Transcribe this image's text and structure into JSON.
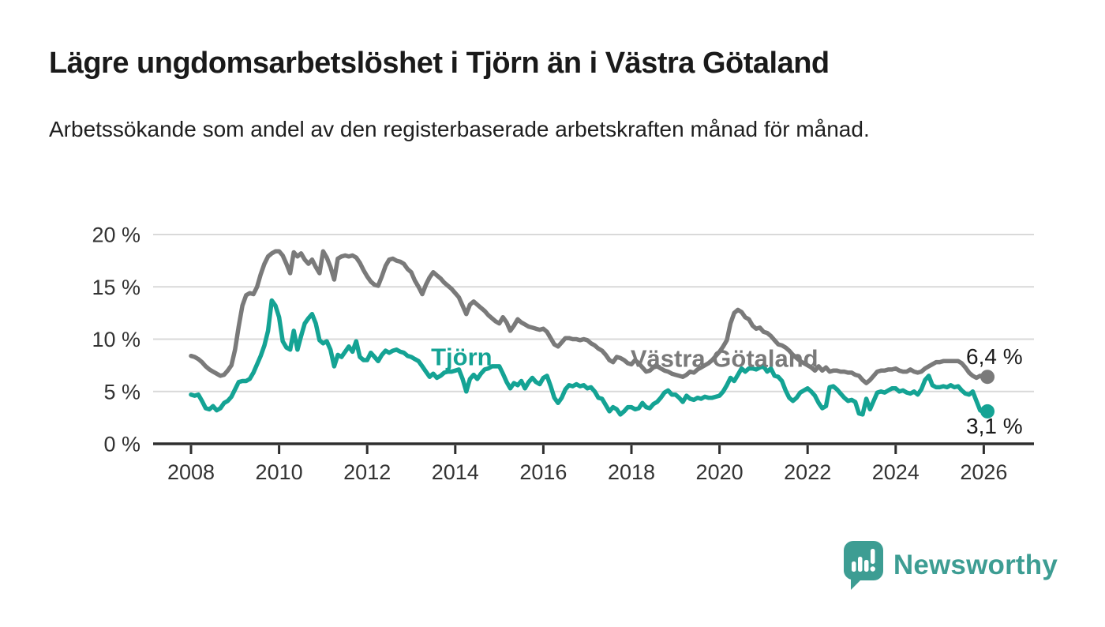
{
  "header": {
    "title": "Lägre ungdomsarbetslöshet i Tjörn än i Västra Götaland",
    "subtitle": "Arbetssökande som andel av den registerbaserade arbetskraften månad för månad."
  },
  "footer": {
    "logo_text": "Newsworthy",
    "logo_icon": "bar-chart-speech-bubble",
    "logo_color": "#3d9d93"
  },
  "colors": {
    "background": "#ffffff",
    "title_text": "#1a1a1a",
    "axis_text": "#333333",
    "gridline": "#d9d9d9",
    "axis_line": "#2e2e2e",
    "tjorn": "#14a394",
    "vastra_gotaland": "#7a7a7a",
    "end_label_text": "#1a1a1a"
  },
  "chart_data": {
    "type": "line",
    "title": "Lägre ungdomsarbetslöshet i Tjörn än i Västra Götaland",
    "subtitle": "Arbetssökande som andel av den registerbaserade arbetskraften månad för månad.",
    "xlabel": "",
    "ylabel": "",
    "grid": "horizontal",
    "legend_position": "inline-labels",
    "start_year": 2008,
    "points_per_year": 12,
    "xlim": [
      2007,
      2027.1
    ],
    "ylim": [
      0,
      20
    ],
    "x_ticks": [
      {
        "value": 2008,
        "label": "2008"
      },
      {
        "value": 2010,
        "label": "2010"
      },
      {
        "value": 2012,
        "label": "2012"
      },
      {
        "value": 2014,
        "label": "2014"
      },
      {
        "value": 2016,
        "label": "2016"
      },
      {
        "value": 2018,
        "label": "2018"
      },
      {
        "value": 2020,
        "label": "2020"
      },
      {
        "value": 2022,
        "label": "2022"
      },
      {
        "value": 2024,
        "label": "2024"
      },
      {
        "value": 2026,
        "label": "2026"
      }
    ],
    "y_ticks": [
      {
        "value": 0,
        "label": "0 %"
      },
      {
        "value": 5,
        "label": "5 %"
      },
      {
        "value": 10,
        "label": "10 %"
      },
      {
        "value": 15,
        "label": "15 %"
      },
      {
        "value": 20,
        "label": "20 %"
      }
    ],
    "series": [
      {
        "name": "Västra Götaland",
        "color": "#7a7a7a",
        "end_label": "6,4 %",
        "end_value": 6.4,
        "end_label_position": "above",
        "values": [
          8.4,
          8.3,
          8.1,
          7.8,
          7.4,
          7.1,
          6.9,
          6.7,
          6.5,
          6.6,
          7.0,
          7.5,
          9.0,
          11.2,
          13.2,
          14.2,
          14.4,
          14.3,
          15.0,
          16.2,
          17.2,
          17.9,
          18.2,
          18.4,
          18.4,
          18.0,
          17.2,
          16.3,
          18.3,
          17.9,
          18.2,
          17.6,
          17.2,
          17.6,
          16.9,
          16.3,
          18.4,
          17.8,
          16.9,
          15.7,
          17.7,
          17.9,
          18.0,
          17.9,
          18.0,
          17.8,
          17.3,
          16.6,
          16.0,
          15.5,
          15.2,
          15.1,
          16.0,
          17.0,
          17.6,
          17.7,
          17.5,
          17.4,
          17.2,
          16.7,
          16.4,
          15.6,
          15.0,
          14.3,
          15.2,
          15.9,
          16.4,
          16.1,
          15.8,
          15.4,
          15.1,
          14.8,
          14.4,
          14.0,
          13.2,
          12.4,
          13.3,
          13.6,
          13.3,
          13.0,
          12.7,
          12.3,
          12.0,
          11.7,
          11.5,
          12.1,
          11.6,
          10.8,
          11.3,
          11.9,
          11.6,
          11.4,
          11.2,
          11.1,
          11.0,
          10.9,
          11.0,
          10.7,
          10.1,
          9.5,
          9.3,
          9.7,
          10.1,
          10.1,
          10.0,
          10.0,
          9.9,
          10.0,
          9.9,
          9.6,
          9.4,
          9.1,
          8.9,
          8.5,
          8.0,
          7.8,
          8.3,
          8.2,
          8.0,
          7.7,
          7.6,
          8.0,
          7.7,
          7.3,
          6.9,
          7.0,
          7.3,
          7.4,
          7.2,
          7.0,
          6.9,
          6.7,
          6.6,
          6.5,
          6.4,
          6.6,
          6.9,
          6.8,
          7.1,
          7.3,
          7.5,
          7.7,
          8.0,
          8.4,
          8.8,
          9.3,
          9.9,
          11.5,
          12.5,
          12.8,
          12.6,
          12.1,
          11.9,
          11.3,
          11.0,
          11.1,
          10.7,
          10.6,
          10.3,
          9.9,
          9.5,
          9.4,
          9.2,
          8.9,
          8.5,
          8.2,
          7.9,
          7.7,
          7.5,
          7.3,
          7.0,
          7.4,
          7.0,
          7.3,
          6.9,
          7.0,
          7.0,
          6.9,
          6.9,
          6.8,
          6.8,
          6.6,
          6.5,
          6.1,
          5.8,
          6.1,
          6.5,
          6.9,
          7.0,
          7.0,
          7.1,
          7.1,
          7.2,
          7.0,
          6.9,
          6.9,
          7.1,
          6.9,
          6.8,
          6.9,
          7.2,
          7.4,
          7.6,
          7.8,
          7.8,
          7.9,
          7.9,
          7.9,
          7.9,
          7.9,
          7.7,
          7.3,
          6.8,
          6.5,
          6.3,
          6.5,
          6.3,
          6.4
        ]
      },
      {
        "name": "Tjörn",
        "color": "#14a394",
        "end_label": "3,1 %",
        "end_value": 3.1,
        "end_label_position": "below",
        "values": [
          4.7,
          4.6,
          4.7,
          4.1,
          3.4,
          3.3,
          3.6,
          3.2,
          3.4,
          3.9,
          4.1,
          4.5,
          5.2,
          5.9,
          6.0,
          6.0,
          6.2,
          6.8,
          7.6,
          8.4,
          9.4,
          10.8,
          13.7,
          13.2,
          12.1,
          9.8,
          9.2,
          9.0,
          10.8,
          9.0,
          10.3,
          11.5,
          12.0,
          12.4,
          11.5,
          9.9,
          9.6,
          9.8,
          9.0,
          7.4,
          8.5,
          8.3,
          8.8,
          9.3,
          8.8,
          9.8,
          8.3,
          8.0,
          8.0,
          8.7,
          8.3,
          7.9,
          8.5,
          8.9,
          8.7,
          8.9,
          9.0,
          8.8,
          8.7,
          8.4,
          8.3,
          8.1,
          7.9,
          7.4,
          6.9,
          6.4,
          6.7,
          6.3,
          6.5,
          6.8,
          6.9,
          6.9,
          7.0,
          7.1,
          6.2,
          5.0,
          6.2,
          6.6,
          6.2,
          6.7,
          7.1,
          7.2,
          7.4,
          7.4,
          7.4,
          6.7,
          5.9,
          5.3,
          5.8,
          5.6,
          6.0,
          5.3,
          5.9,
          6.3,
          5.9,
          5.7,
          6.3,
          6.5,
          5.5,
          4.4,
          3.9,
          4.4,
          5.2,
          5.6,
          5.5,
          5.7,
          5.5,
          5.6,
          5.3,
          5.4,
          5.0,
          4.4,
          4.3,
          3.7,
          3.1,
          3.5,
          3.3,
          2.8,
          3.1,
          3.5,
          3.5,
          3.3,
          3.4,
          3.9,
          3.5,
          3.4,
          3.8,
          4.0,
          4.4,
          4.9,
          5.1,
          4.7,
          4.7,
          4.4,
          4.0,
          4.6,
          4.3,
          4.2,
          4.4,
          4.3,
          4.5,
          4.4,
          4.4,
          4.5,
          4.6,
          5.0,
          5.6,
          6.3,
          6.0,
          6.6,
          7.2,
          6.9,
          7.2,
          7.2,
          7.1,
          7.3,
          7.4,
          6.9,
          7.2,
          6.5,
          6.4,
          6.0,
          5.1,
          4.4,
          4.1,
          4.4,
          4.9,
          5.1,
          5.3,
          5.0,
          4.6,
          3.9,
          3.4,
          3.6,
          5.4,
          5.5,
          5.2,
          4.8,
          4.4,
          4.1,
          4.2,
          4.0,
          2.9,
          2.8,
          4.3,
          3.3,
          4.1,
          4.9,
          5.0,
          4.9,
          5.1,
          5.3,
          5.3,
          5.0,
          5.1,
          4.9,
          4.8,
          5.0,
          4.7,
          5.2,
          6.1,
          6.5,
          5.6,
          5.4,
          5.4,
          5.5,
          5.4,
          5.6,
          5.4,
          5.5,
          5.1,
          4.8,
          4.7,
          5.0,
          4.1,
          3.2,
          3.0,
          3.1
        ]
      }
    ],
    "series_labels": [
      {
        "text": "Tjörn",
        "x": 2013.45,
        "y": 7.5,
        "color": "#14a394"
      },
      {
        "text": "Västra Götaland",
        "x": 2017.98,
        "y": 7.35,
        "color": "#7a7a7a"
      }
    ]
  }
}
